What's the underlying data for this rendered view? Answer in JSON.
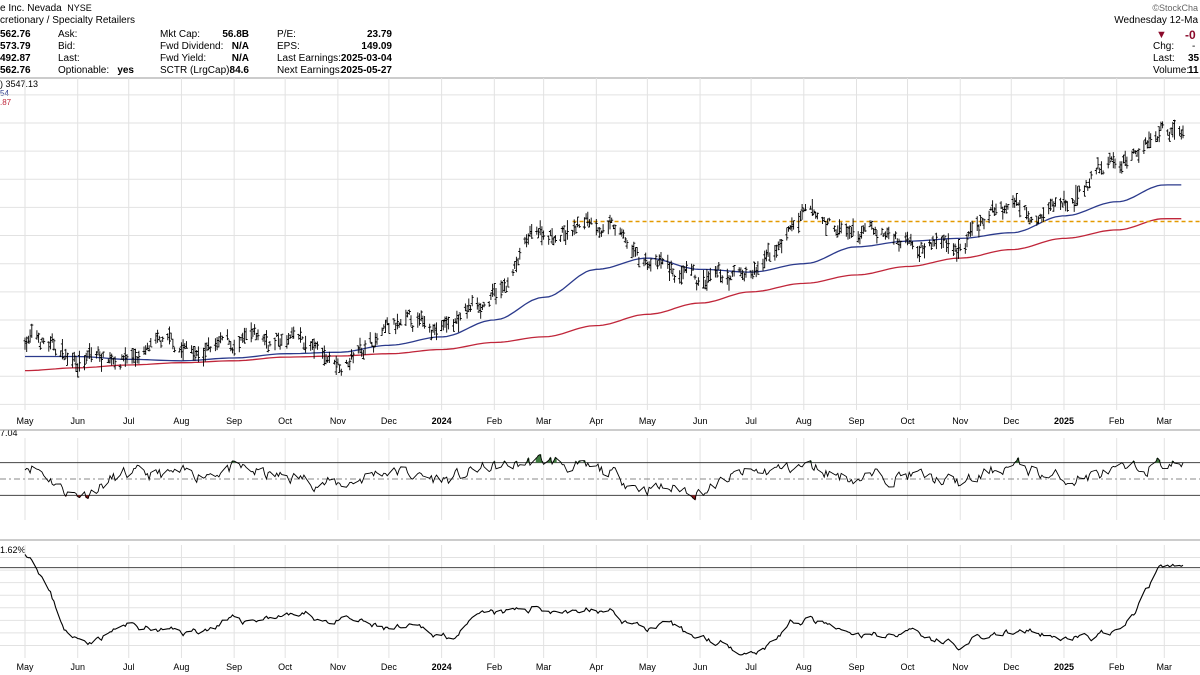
{
  "header": {
    "title": "e Inc. Nevada",
    "exchange": "NYSE",
    "sector": "cretionary / Specialty Retailers",
    "watermark": "©StockCha",
    "date": "Wednesday 12-Ma",
    "change_value": "-0",
    "change_arrow_color": "#8b0a2b",
    "chg_label": "Chg:",
    "chg_value": "-",
    "last_label": "Last:",
    "last_value": "35",
    "volume_label": "Volume:",
    "volume_value": "11"
  },
  "quote": {
    "col1": [
      "562.76",
      "573.79",
      "492.87",
      "562.76"
    ],
    "col2_labels": [
      "Ask:",
      "Bid:",
      "Last:",
      "Optionable:"
    ],
    "col2_values": [
      "",
      "",
      "",
      "yes"
    ],
    "col3_labels": [
      "Mkt Cap:",
      "Fwd Dividend:",
      "Fwd Yield:",
      "SCTR (LrgCap):"
    ],
    "col3_values": [
      "56.8B",
      "N/A",
      "N/A",
      "84.6"
    ],
    "col4_labels": [
      "P/E:",
      "EPS:",
      "Last Earnings:",
      "Next Earnings:"
    ],
    "col4_values": [
      "23.79",
      "149.09",
      "2025-03-04",
      "2025-05-27"
    ]
  },
  "legend": {
    "price_label": ") 3547.13",
    "ma_short_label": "54",
    "ma_long_label": ".87",
    "rsi_label": "7.04",
    "rs_label": "1.62%"
  },
  "colors": {
    "price": "#000000",
    "ma_short": "#2b3a8c",
    "ma_long": "#c0263a",
    "resistance": "#e39a00",
    "rsi_overbought": "#3d7a3d",
    "rsi_oversold": "#8b1a1a",
    "grid": "#e2e2e2"
  },
  "chart_data": [
    {
      "type": "line",
      "role": "price",
      "x_axis_ticks": [
        "May",
        "Jun",
        "Jul",
        "Aug",
        "Sep",
        "Oct",
        "Nov",
        "Dec",
        "2024",
        "Feb",
        "Mar",
        "Apr",
        "May",
        "Jun",
        "Jul",
        "Aug",
        "Sep",
        "Oct",
        "Nov",
        "Dec",
        "2025",
        "Feb",
        "Mar"
      ],
      "x_axis_bold": [
        "2024",
        "2025"
      ],
      "x": [
        "2023-05-01",
        "2023-06-01",
        "2023-07-01",
        "2023-08-01",
        "2023-09-01",
        "2023-10-01",
        "2023-11-01",
        "2023-12-01",
        "2024-01-01",
        "2024-02-01",
        "2024-03-01",
        "2024-04-01",
        "2024-05-01",
        "2024-06-01",
        "2024-07-01",
        "2024-08-01",
        "2024-09-01",
        "2024-10-01",
        "2024-11-01",
        "2024-12-01",
        "2025-01-01",
        "2025-02-01",
        "2025-03-01"
      ],
      "series": [
        {
          "name": "price",
          "values": [
            2640,
            2560,
            2580,
            2590,
            2600,
            2620,
            2560,
            2650,
            2680,
            2780,
            3010,
            3050,
            2900,
            2810,
            2860,
            3050,
            3000,
            3000,
            2970,
            3110,
            3120,
            3250,
            3390
          ]
        },
        {
          "name": "ma_short",
          "values": [
            2570,
            2570,
            2560,
            2555,
            2565,
            2580,
            2585,
            2610,
            2640,
            2700,
            2780,
            2880,
            2920,
            2880,
            2870,
            2900,
            2960,
            2980,
            2990,
            3010,
            3070,
            3120,
            3180
          ]
        },
        {
          "name": "ma_long",
          "values": [
            2520,
            2530,
            2540,
            2548,
            2555,
            2568,
            2572,
            2580,
            2595,
            2620,
            2640,
            2680,
            2720,
            2760,
            2800,
            2830,
            2860,
            2890,
            2920,
            2950,
            2990,
            3020,
            3060
          ]
        }
      ],
      "resistance_level": 3050,
      "resistance_start": "2024-03-18"
    },
    {
      "type": "line",
      "role": "rsi",
      "x": [
        "2023-05-01",
        "2023-06-01",
        "2023-07-01",
        "2023-08-01",
        "2023-09-01",
        "2023-10-01",
        "2023-11-01",
        "2023-12-01",
        "2024-01-01",
        "2024-02-01",
        "2024-03-01",
        "2024-04-01",
        "2024-05-01",
        "2024-06-01",
        "2024-07-01",
        "2024-08-01",
        "2024-09-01",
        "2024-10-01",
        "2024-11-01",
        "2024-12-01",
        "2025-01-01",
        "2025-02-01",
        "2025-03-01"
      ],
      "values": [
        68,
        32,
        55,
        55,
        62,
        52,
        44,
        60,
        50,
        64,
        72,
        60,
        40,
        36,
        58,
        65,
        52,
        55,
        45,
        66,
        50,
        58,
        68
      ],
      "ylim": [
        0,
        100
      ],
      "overbought": 70,
      "oversold": 30,
      "midline": 50
    },
    {
      "type": "line",
      "role": "relative_strength",
      "x": [
        "2023-05-01",
        "2023-06-01",
        "2023-07-01",
        "2023-08-01",
        "2023-09-01",
        "2023-10-01",
        "2023-11-01",
        "2023-12-01",
        "2024-01-01",
        "2024-02-01",
        "2024-03-01",
        "2024-04-01",
        "2024-05-01",
        "2024-06-01",
        "2024-07-01",
        "2024-08-01",
        "2024-09-01",
        "2024-10-01",
        "2024-11-01",
        "2024-12-01",
        "2025-01-01",
        "2025-02-01",
        "2025-03-01"
      ],
      "values": [
        1.75,
        1.05,
        1.15,
        1.1,
        1.18,
        1.25,
        1.2,
        1.12,
        1.08,
        1.22,
        1.3,
        1.28,
        1.15,
        1.05,
        0.98,
        1.2,
        1.05,
        1.12,
        1.02,
        1.1,
        1.05,
        1.08,
        1.6
      ],
      "reference_level": 1.62
    }
  ]
}
